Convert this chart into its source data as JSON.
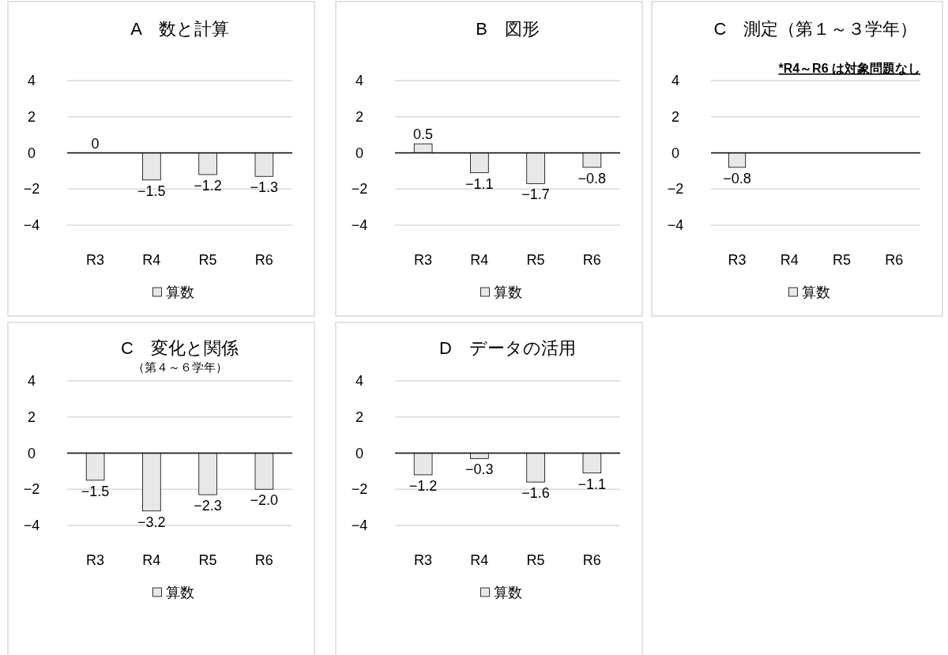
{
  "chart_data": [
    {
      "type": "bar",
      "title": "A　数と計算",
      "categories": [
        "R3",
        "R4",
        "R5",
        "R6"
      ],
      "series": [
        {
          "name": "算数",
          "color": "#e8e8e8",
          "values": [
            0,
            -1.5,
            -1.2,
            -1.3
          ],
          "value_labels": [
            "0",
            "−1.5",
            "−1.2",
            "−1.3"
          ]
        }
      ],
      "ylim": [
        -4,
        4
      ],
      "yticks": [
        -4,
        -2,
        0,
        2,
        4
      ],
      "grid": "y",
      "legend": "bottom"
    },
    {
      "type": "bar",
      "title": "B　図形",
      "categories": [
        "R3",
        "R4",
        "R5",
        "R6"
      ],
      "series": [
        {
          "name": "算数",
          "color": "#e8e8e8",
          "values": [
            0.5,
            -1.1,
            -1.7,
            -0.8
          ],
          "value_labels": [
            "0.5",
            "−1.1",
            "−1.7",
            "−0.8"
          ]
        }
      ],
      "ylim": [
        -4,
        4
      ],
      "yticks": [
        -4,
        -2,
        0,
        2,
        4
      ],
      "grid": "y",
      "legend": "bottom"
    },
    {
      "type": "bar",
      "title": "C　測定（第１～３学年）",
      "annotations": [
        "*R4～R6 は対象問題なし"
      ],
      "categories": [
        "R3",
        "R4",
        "R5",
        "R6"
      ],
      "series": [
        {
          "name": "算数",
          "color": "#e8e8e8",
          "values": [
            -0.8,
            null,
            null,
            null
          ],
          "value_labels": [
            "−0.8",
            null,
            null,
            null
          ]
        }
      ],
      "ylim": [
        -4,
        4
      ],
      "yticks": [
        -4,
        -2,
        0,
        2,
        4
      ],
      "grid": "y",
      "legend": "bottom"
    },
    {
      "type": "bar",
      "title": "C　変化と関係",
      "subtitle": "（第４～６学年）",
      "categories": [
        "R3",
        "R4",
        "R5",
        "R6"
      ],
      "series": [
        {
          "name": "算数",
          "color": "#e8e8e8",
          "values": [
            -1.5,
            -3.2,
            -2.3,
            -2.0
          ],
          "value_labels": [
            "−1.5",
            "−3.2",
            "−2.3",
            "−2.0"
          ]
        }
      ],
      "ylim": [
        -4,
        4
      ],
      "yticks": [
        -4,
        -2,
        0,
        2,
        4
      ],
      "grid": "y",
      "legend": "bottom"
    },
    {
      "type": "bar",
      "title": "D　データの活用",
      "categories": [
        "R3",
        "R4",
        "R5",
        "R6"
      ],
      "series": [
        {
          "name": "算数",
          "color": "#e8e8e8",
          "values": [
            -1.2,
            -0.3,
            -1.6,
            -1.1
          ],
          "value_labels": [
            "−1.2",
            "−0.3",
            "−1.6",
            "−1.1"
          ]
        }
      ],
      "ylim": [
        -4,
        4
      ],
      "yticks": [
        -4,
        -2,
        0,
        2,
        4
      ],
      "grid": "y",
      "legend": "bottom"
    }
  ]
}
